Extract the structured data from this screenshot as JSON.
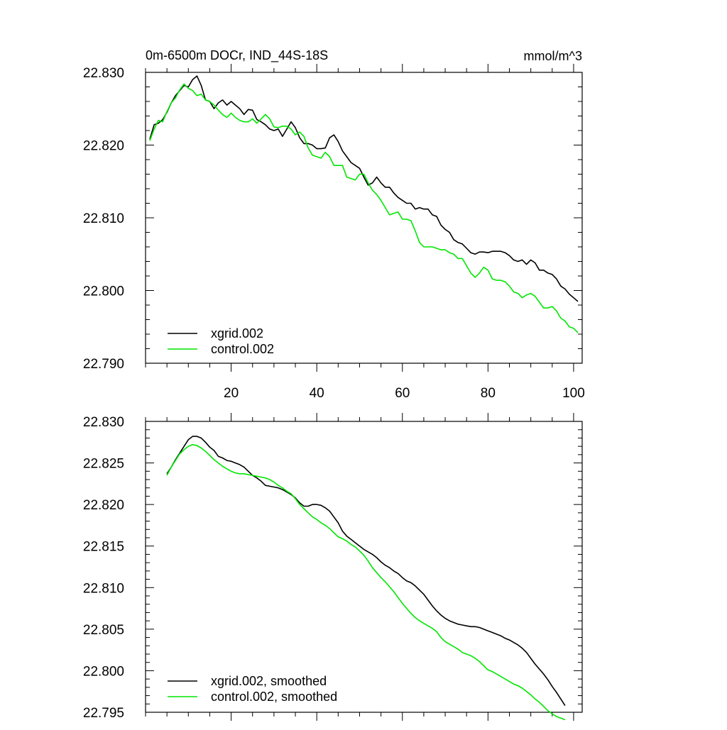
{
  "colors": {
    "xgrid": "#000000",
    "control": "#00e600",
    "axis": "#000000"
  },
  "chart_data": [
    {
      "type": "line",
      "title": "0m-6500m DOCr, IND_44S-18S",
      "title_right": "mmol/m^3",
      "xlabel": "",
      "ylabel": "",
      "xlim": [
        0,
        102
      ],
      "ylim": [
        22.79,
        22.83
      ],
      "x_ticks": [
        20,
        40,
        60,
        80,
        100
      ],
      "x_tick_labels": [
        "20",
        "40",
        "60",
        "80",
        "100"
      ],
      "y_ticks": [
        22.79,
        22.8,
        22.81,
        22.82,
        22.83
      ],
      "y_tick_labels": [
        "22.790",
        "22.800",
        "22.810",
        "22.820",
        "22.830"
      ],
      "grid": false,
      "legend_position": "bottom-left",
      "x": [
        1,
        2,
        3,
        4,
        5,
        6,
        7,
        8,
        9,
        10,
        11,
        12,
        13,
        14,
        15,
        16,
        17,
        18,
        19,
        20,
        21,
        22,
        23,
        24,
        25,
        26,
        27,
        28,
        29,
        30,
        31,
        32,
        33,
        34,
        35,
        36,
        37,
        38,
        39,
        40,
        41,
        42,
        43,
        44,
        45,
        46,
        47,
        48,
        49,
        50,
        51,
        52,
        53,
        54,
        55,
        56,
        57,
        58,
        59,
        60,
        61,
        62,
        63,
        64,
        65,
        66,
        67,
        68,
        69,
        70,
        71,
        72,
        73,
        74,
        75,
        76,
        77,
        78,
        79,
        80,
        81,
        82,
        83,
        84,
        85,
        86,
        87,
        88,
        89,
        90,
        91,
        92,
        93,
        94,
        95,
        96,
        97,
        98,
        99,
        100,
        101
      ],
      "series": [
        {
          "name": "xgrid.002",
          "color_key": "xgrid",
          "values": [
            22.8208,
            22.8228,
            22.823,
            22.8235,
            22.8245,
            22.8258,
            22.8268,
            22.8275,
            22.8282,
            22.828,
            22.829,
            22.8295,
            22.8282,
            22.8262,
            22.826,
            22.825,
            22.8258,
            22.8262,
            22.8255,
            22.826,
            22.8255,
            22.825,
            22.8242,
            22.8249,
            22.8248,
            22.8235,
            22.8232,
            22.8228,
            22.8222,
            22.822,
            22.8222,
            22.8212,
            22.8222,
            22.8232,
            22.8224,
            22.821,
            22.8202,
            22.8202,
            22.82,
            22.8195,
            22.8195,
            22.8196,
            22.821,
            22.8214,
            22.8205,
            22.8192,
            22.8184,
            22.8176,
            22.8172,
            22.8168,
            22.8156,
            22.8145,
            22.8148,
            22.8156,
            22.8148,
            22.8142,
            22.8142,
            22.8134,
            22.8128,
            22.8124,
            22.812,
            22.812,
            22.8112,
            22.8114,
            22.8112,
            22.8112,
            22.8104,
            22.8102,
            22.809,
            22.8084,
            22.808,
            22.807,
            22.8066,
            22.8064,
            22.8058,
            22.8052,
            22.805,
            22.8053,
            22.8053,
            22.8052,
            22.8054,
            22.8054,
            22.8054,
            22.8052,
            22.8048,
            22.8042,
            22.804,
            22.8042,
            22.8036,
            22.8042,
            22.8038,
            22.8028,
            22.8028,
            22.8024,
            22.8022,
            22.8016,
            22.8006,
            22.8002,
            22.7995,
            22.799,
            22.7985
          ]
        },
        {
          "name": "control.002",
          "color_key": "control",
          "values": [
            22.8206,
            22.8222,
            22.8234,
            22.8232,
            22.8246,
            22.8258,
            22.8265,
            22.8276,
            22.8284,
            22.8278,
            22.8275,
            22.8268,
            22.827,
            22.8262,
            22.826,
            22.8255,
            22.8248,
            22.8242,
            22.8238,
            22.8244,
            22.8238,
            22.8234,
            22.8232,
            22.8232,
            22.8236,
            22.823,
            22.8236,
            22.8242,
            22.8236,
            22.8225,
            22.8224,
            22.8226,
            22.8226,
            22.8222,
            22.8214,
            22.8218,
            22.8212,
            22.8196,
            22.8186,
            22.8184,
            22.8182,
            22.819,
            22.8184,
            22.8172,
            22.8172,
            22.8172,
            22.8156,
            22.8154,
            22.8152,
            22.816,
            22.816,
            22.8148,
            22.8138,
            22.8132,
            22.8124,
            22.8114,
            22.8104,
            22.8106,
            22.8108,
            22.8098,
            22.8098,
            22.8096,
            22.8082,
            22.8066,
            22.806,
            22.806,
            22.806,
            22.8058,
            22.8056,
            22.8056,
            22.8052,
            22.805,
            22.8044,
            22.8044,
            22.8034,
            22.8024,
            22.8018,
            22.8024,
            22.8032,
            22.8028,
            22.8016,
            22.8014,
            22.8014,
            22.8012,
            22.8006,
            22.7998,
            22.7996,
            22.799,
            22.7994,
            22.7996,
            22.7992,
            22.7984,
            22.7976,
            22.7976,
            22.7978,
            22.7972,
            22.7962,
            22.7958,
            22.795,
            22.7948,
            22.7942
          ]
        }
      ]
    },
    {
      "type": "line",
      "title": "",
      "xlabel": "",
      "ylabel": "",
      "xlim": [
        0,
        102
      ],
      "ylim": [
        22.795,
        22.83
      ],
      "x_ticks": [
        20,
        40,
        60,
        80,
        100
      ],
      "y_ticks": [
        22.795,
        22.8,
        22.805,
        22.81,
        22.815,
        22.82,
        22.825,
        22.83
      ],
      "y_tick_labels": [
        "22.795",
        "22.800",
        "22.805",
        "22.810",
        "22.815",
        "22.820",
        "22.825",
        "22.830"
      ],
      "grid": false,
      "legend_position": "bottom-left",
      "x": [
        5,
        6,
        7,
        8,
        9,
        10,
        11,
        12,
        13,
        14,
        15,
        16,
        17,
        18,
        19,
        20,
        21,
        22,
        23,
        24,
        25,
        26,
        27,
        28,
        29,
        30,
        31,
        32,
        33,
        34,
        35,
        36,
        37,
        38,
        39,
        40,
        41,
        42,
        43,
        44,
        45,
        46,
        47,
        48,
        49,
        50,
        51,
        52,
        53,
        54,
        55,
        56,
        57,
        58,
        59,
        60,
        61,
        62,
        63,
        64,
        65,
        66,
        67,
        68,
        69,
        70,
        71,
        72,
        73,
        74,
        75,
        76,
        77,
        78,
        79,
        80,
        81,
        82,
        83,
        84,
        85,
        86,
        87,
        88,
        89,
        90,
        91,
        92,
        93,
        94,
        95,
        96,
        97,
        98
      ],
      "series": [
        {
          "name": "xgrid.002, smoothed",
          "color_key": "xgrid",
          "values": [
            22.8237,
            22.8245,
            22.8254,
            22.8262,
            22.827,
            22.8278,
            22.8282,
            22.8282,
            22.828,
            22.8275,
            22.8269,
            22.8265,
            22.8258,
            22.8256,
            22.8253,
            22.8252,
            22.825,
            22.8248,
            22.8245,
            22.824,
            22.8235,
            22.8232,
            22.8228,
            22.8223,
            22.8222,
            22.8221,
            22.822,
            22.8218,
            22.8215,
            22.8212,
            22.8208,
            22.8202,
            22.8198,
            22.8198,
            22.82,
            22.82,
            22.8199,
            22.8196,
            22.8192,
            22.8185,
            22.8178,
            22.8168,
            22.8162,
            22.8158,
            22.8154,
            22.815,
            22.8146,
            22.8143,
            22.814,
            22.8136,
            22.8131,
            22.8127,
            22.8124,
            22.812,
            22.8117,
            22.8112,
            22.8108,
            22.8106,
            22.8102,
            22.8097,
            22.8092,
            22.8085,
            22.8078,
            22.8072,
            22.8067,
            22.8063,
            22.806,
            22.8058,
            22.8056,
            22.8055,
            22.8054,
            22.8053,
            22.8053,
            22.8052,
            22.805,
            22.8048,
            22.8046,
            22.8044,
            22.8042,
            22.8039,
            22.8037,
            22.8034,
            22.8031,
            22.8027,
            22.8022,
            22.8015,
            22.8008,
            22.8002,
            22.7996,
            22.7989,
            22.7981,
            22.7974,
            22.7966,
            22.7958
          ]
        },
        {
          "name": "control.002, smoothed",
          "color_key": "control",
          "values": [
            22.8235,
            22.8245,
            22.8253,
            22.8261,
            22.8266,
            22.827,
            22.8272,
            22.8271,
            22.8268,
            22.8264,
            22.8259,
            22.8254,
            22.825,
            22.8246,
            22.8243,
            22.824,
            22.8238,
            22.8237,
            22.8237,
            22.8236,
            22.8235,
            22.8234,
            22.8233,
            22.8232,
            22.823,
            22.8227,
            22.8223,
            22.822,
            22.8216,
            22.8213,
            22.8207,
            22.82,
            22.8195,
            22.819,
            22.8185,
            22.8182,
            22.8178,
            22.8175,
            22.8171,
            22.8166,
            22.8161,
            22.8159,
            22.8156,
            22.8152,
            22.8149,
            22.8144,
            22.8139,
            22.8132,
            22.8124,
            22.8118,
            22.8112,
            22.8107,
            22.8101,
            22.8095,
            22.8088,
            22.8081,
            22.8075,
            22.8069,
            22.8064,
            22.806,
            22.8057,
            22.8054,
            22.8051,
            22.8047,
            22.804,
            22.8035,
            22.8032,
            22.8029,
            22.8026,
            22.8022,
            22.802,
            22.8018,
            22.8015,
            22.8011,
            22.8006,
            22.8001,
            22.7999,
            22.7996,
            22.7993,
            22.799,
            22.7987,
            22.7984,
            22.7982,
            22.7979,
            22.7975,
            22.7971,
            22.7966,
            22.7962,
            22.7957,
            22.7952,
            22.7948,
            22.7945,
            22.7943,
            22.7941
          ]
        }
      ]
    }
  ]
}
